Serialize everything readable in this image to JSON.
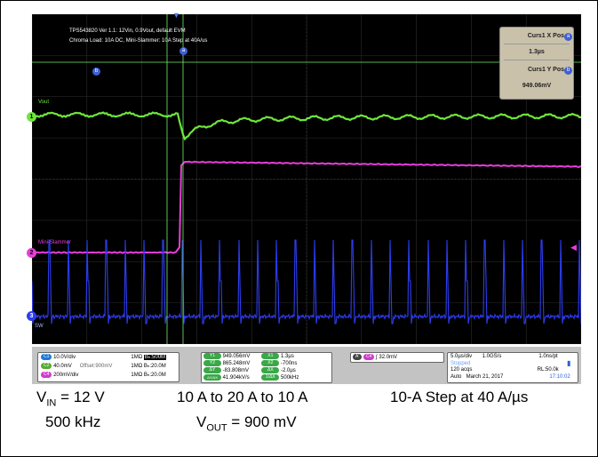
{
  "header": {
    "line1": "TPS543820 Ver 1.1: 12Vin, 0.9Vout,  default EVM",
    "line2": "Chroma Load: 10A DC, Mini-Slammer: 10A Step at 40A/us"
  },
  "cursor_panel": {
    "x_title": "Curs1 X Pos",
    "x_badge": "a",
    "x_value": "1.3µs",
    "y_title": "Curs1 Y Pos",
    "y_badge": "b",
    "y_value": "949.06mV"
  },
  "cursor_markers": {
    "a": "a",
    "b": "b"
  },
  "waveforms": {
    "vout": {
      "label": "Vout",
      "color": "#6ee63a",
      "marker": "1"
    },
    "mini": {
      "label": "Mini-Slammer",
      "color": "#e83ddc",
      "marker": "2"
    },
    "sw": {
      "label": "SW",
      "color": "#2d3df0",
      "marker": "3"
    }
  },
  "trigger_arrow": "▼",
  "channels": [
    {
      "badge": "C1",
      "color": "#1e78d8",
      "scale": "10.0V/div",
      "offset": "",
      "imp": "1MΩ",
      "bw": "Bₕ:500M"
    },
    {
      "badge": "C2",
      "color": "#55aa33",
      "scale": "40.0mV",
      "offset": "Offset:900mV",
      "imp": "1MΩ",
      "bw": "Bₕ:20.0M"
    },
    {
      "badge": "C4",
      "color": "#d03acb",
      "scale": "200mV/div",
      "offset": "",
      "imp": "1MΩ",
      "bw": "Bₕ:20.0M"
    }
  ],
  "measurements": [
    {
      "badge": "Y1",
      "value": "949.056mV",
      "xbadge": "X1",
      "xvalue": "1.3µs"
    },
    {
      "badge": "Y2",
      "value": "865.248mV",
      "xbadge": "X2",
      "xvalue": "-700ns"
    },
    {
      "badge": "ΔY",
      "value": "-83.808mV",
      "xbadge": "ΔX",
      "xvalue": "-2.0µs"
    },
    {
      "badge": "ΔY/ΔX",
      "value": "41.904kV/s",
      "xbadge": "1/ΔX",
      "xvalue": "500kHz"
    }
  ],
  "trigger": {
    "mode": "A'",
    "channel": "C4",
    "slope": "∫",
    "level": "32.0mV"
  },
  "timebase": {
    "timediv": "5.0µs/div",
    "sample_rate": "1.0GS/s",
    "resolution": "1.0ns/pt",
    "status": "Stopped",
    "acqs": "120 acqs",
    "record_length": "RL:50.0k",
    "mode": "Auto",
    "date": "March 21, 2017",
    "time": "17:10:02"
  },
  "captions": {
    "vin": "V",
    "vin_sub": "IN",
    "vin_val": " = 12 V",
    "freq": "500 kHz",
    "step": "10 A to 20 A to 10 A",
    "vout": "V",
    "vout_sub": "OUT",
    "vout_val": " = 900 mV",
    "slew": "10-A Step at 40 A/µs"
  }
}
